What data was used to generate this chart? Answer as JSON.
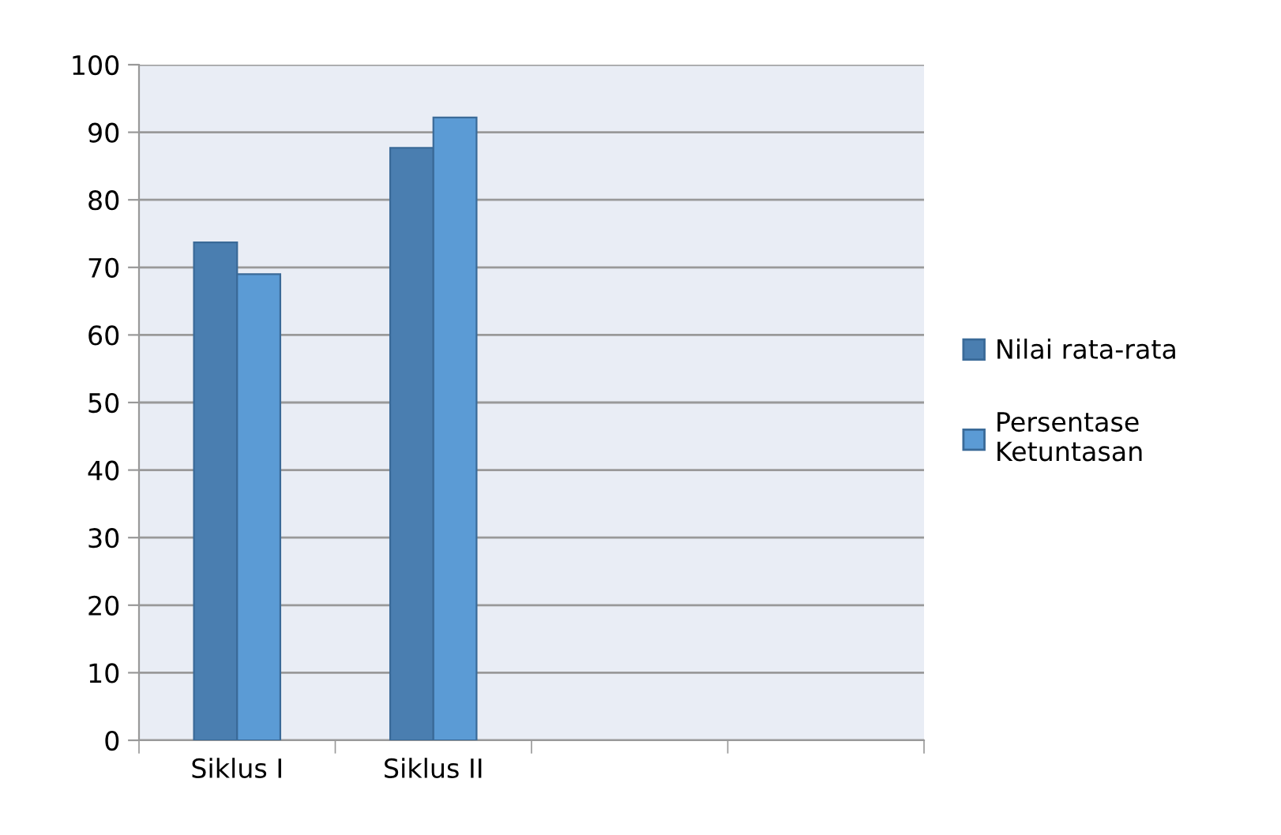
{
  "chart_data": {
    "type": "bar",
    "categories": [
      "Siklus I",
      "Siklus II",
      null,
      null
    ],
    "series": [
      {
        "name": "Nilai rata-rata",
        "color": "#4a7eb0",
        "values": [
          73.7,
          87.7,
          null,
          null
        ]
      },
      {
        "name": "Persentase\nKetuntasan",
        "color": "#5b9bd5",
        "values": [
          69.0,
          92.2,
          null,
          null
        ]
      }
    ],
    "ylim": [
      0,
      100
    ],
    "yticks": [
      0,
      10,
      20,
      30,
      40,
      50,
      60,
      70,
      80,
      90,
      100
    ],
    "grid": "y",
    "legend": "right"
  }
}
